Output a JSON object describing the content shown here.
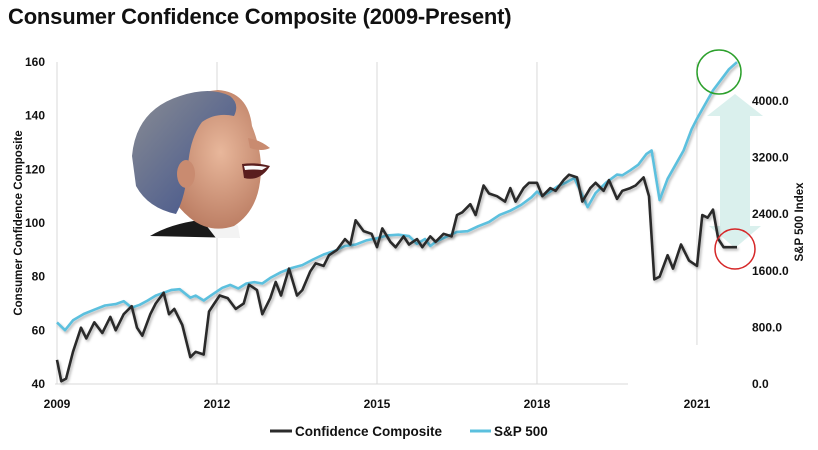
{
  "title": "Consumer Confidence Composite (2009-Present)",
  "colors": {
    "confidence": "#2b2b2b",
    "sp500": "#5bc0de",
    "grid": "#d9d9d9",
    "arrow": "#d8efec",
    "circle_top": "#2ca02c",
    "circle_bottom": "#d62728"
  },
  "annotations": {
    "photo": "laughing-man-photo",
    "arrow": "up-arrow",
    "circle_top": "green-circle-sp500-high",
    "circle_bottom": "red-circle-confidence-low"
  },
  "chart_data": {
    "type": "line",
    "title": "Consumer Confidence Composite (2009-Present)",
    "xlabel": "",
    "ylabel": "Consumer Confidence Composite",
    "y2label": "S&P 500 Index",
    "xlim": [
      2009,
      2022.2
    ],
    "ylim": [
      40,
      160
    ],
    "y2lim": [
      0,
      4500
    ],
    "x_ticks": [
      "2009",
      "2012",
      "2015",
      "2018",
      "2021"
    ],
    "x_tick_values": [
      2009,
      2012,
      2015,
      2018,
      2021
    ],
    "y_ticks": [
      "40",
      "60",
      "80",
      "100",
      "120",
      "140",
      "160"
    ],
    "y_tick_values": [
      40,
      60,
      80,
      100,
      120,
      140,
      160
    ],
    "y2_ticks": [
      "0.0",
      "800.0",
      "1600.0",
      "2400.0",
      "3200.0",
      "4000.0"
    ],
    "y2_tick_values": [
      0,
      800,
      1600,
      2400,
      3200,
      4000
    ],
    "grid": "vertical",
    "legend_position": "bottom",
    "series": [
      {
        "name": "Confidence Composite",
        "axis": "left",
        "x": [
          2009.0,
          2009.08,
          2009.17,
          2009.3,
          2009.45,
          2009.55,
          2009.7,
          2009.85,
          2010.0,
          2010.1,
          2010.25,
          2010.4,
          2010.5,
          2010.6,
          2010.75,
          2010.85,
          2011.0,
          2011.1,
          2011.2,
          2011.35,
          2011.5,
          2011.6,
          2011.75,
          2011.85,
          2011.95,
          2012.05,
          2012.2,
          2012.35,
          2012.5,
          2012.6,
          2012.75,
          2012.85,
          2013.0,
          2013.1,
          2013.2,
          2013.35,
          2013.5,
          2013.6,
          2013.75,
          2013.85,
          2014.0,
          2014.1,
          2014.25,
          2014.4,
          2014.5,
          2014.6,
          2014.75,
          2014.9,
          2015.0,
          2015.1,
          2015.25,
          2015.35,
          2015.5,
          2015.6,
          2015.75,
          2015.85,
          2016.0,
          2016.1,
          2016.25,
          2016.4,
          2016.5,
          2016.6,
          2016.75,
          2016.85,
          2017.0,
          2017.1,
          2017.25,
          2017.4,
          2017.5,
          2017.6,
          2017.75,
          2017.85,
          2018.0,
          2018.1,
          2018.25,
          2018.35,
          2018.5,
          2018.6,
          2018.75,
          2018.85,
          2019.0,
          2019.1,
          2019.25,
          2019.35,
          2019.5,
          2019.6,
          2019.75,
          2019.85,
          2020.0,
          2020.1,
          2020.2,
          2020.3,
          2020.45,
          2020.55,
          2020.7,
          2020.85,
          2021.0,
          2021.1,
          2021.2,
          2021.3,
          2021.4,
          2021.5,
          2021.6,
          2021.75
        ],
        "values": [
          49,
          41,
          42,
          52,
          61,
          57,
          63,
          59,
          65,
          60,
          66,
          69,
          61,
          58,
          66,
          70,
          74,
          66,
          68,
          62,
          50,
          52,
          51,
          67,
          70,
          73,
          72,
          68,
          70,
          77,
          75,
          66,
          72,
          78,
          73,
          83,
          73,
          75,
          82,
          85,
          84,
          88,
          90,
          94,
          92,
          101,
          97,
          96,
          91,
          98,
          93,
          91,
          95,
          92,
          94,
          91,
          95,
          93,
          96,
          95,
          103,
          104,
          107,
          103,
          114,
          111,
          110,
          108,
          113,
          108,
          113,
          115,
          115,
          110,
          113,
          112,
          116,
          118,
          117,
          108,
          113,
          115,
          112,
          116,
          109,
          112,
          113,
          114,
          117,
          110,
          79,
          80,
          88,
          83,
          92,
          86,
          84,
          103,
          102,
          105,
          94,
          91,
          91,
          91
        ],
        "current_value_note": ""
      },
      {
        "name": "S&P 500",
        "axis": "right",
        "x": [
          2009.0,
          2009.15,
          2009.3,
          2009.5,
          2009.7,
          2009.9,
          2010.1,
          2010.25,
          2010.4,
          2010.55,
          2010.7,
          2010.85,
          2011.0,
          2011.15,
          2011.3,
          2011.5,
          2011.6,
          2011.75,
          2011.9,
          2012.1,
          2012.25,
          2012.4,
          2012.55,
          2012.7,
          2012.85,
          2013.0,
          2013.2,
          2013.4,
          2013.6,
          2013.8,
          2014.0,
          2014.2,
          2014.4,
          2014.6,
          2014.8,
          2015.0,
          2015.2,
          2015.4,
          2015.6,
          2015.75,
          2015.9,
          2016.0,
          2016.1,
          2016.3,
          2016.5,
          2016.7,
          2016.9,
          2017.1,
          2017.3,
          2017.5,
          2017.7,
          2017.9,
          2018.0,
          2018.1,
          2018.25,
          2018.4,
          2018.55,
          2018.7,
          2018.8,
          2018.95,
          2019.1,
          2019.3,
          2019.5,
          2019.6,
          2019.75,
          2019.9,
          2020.05,
          2020.15,
          2020.3,
          2020.45,
          2020.6,
          2020.75,
          2020.9,
          2021.0,
          2021.15,
          2021.3,
          2021.45,
          2021.6,
          2021.75
        ],
        "values": [
          870,
          760,
          900,
          990,
          1050,
          1110,
          1130,
          1170,
          1080,
          1120,
          1180,
          1250,
          1290,
          1330,
          1340,
          1220,
          1250,
          1180,
          1260,
          1360,
          1400,
          1350,
          1420,
          1440,
          1420,
          1500,
          1580,
          1640,
          1680,
          1760,
          1830,
          1880,
          1950,
          1970,
          2030,
          2060,
          2100,
          2110,
          2090,
          1980,
          2050,
          1950,
          2010,
          2080,
          2150,
          2160,
          2230,
          2290,
          2390,
          2450,
          2530,
          2640,
          2720,
          2660,
          2720,
          2800,
          2850,
          2910,
          2750,
          2500,
          2700,
          2850,
          2960,
          2950,
          3020,
          3100,
          3250,
          3300,
          2600,
          2900,
          3100,
          3300,
          3600,
          3750,
          3950,
          4150,
          4300,
          4450,
          4550
        ]
      }
    ]
  },
  "legend": {
    "items": [
      "Confidence Composite",
      "S&P 500"
    ]
  }
}
